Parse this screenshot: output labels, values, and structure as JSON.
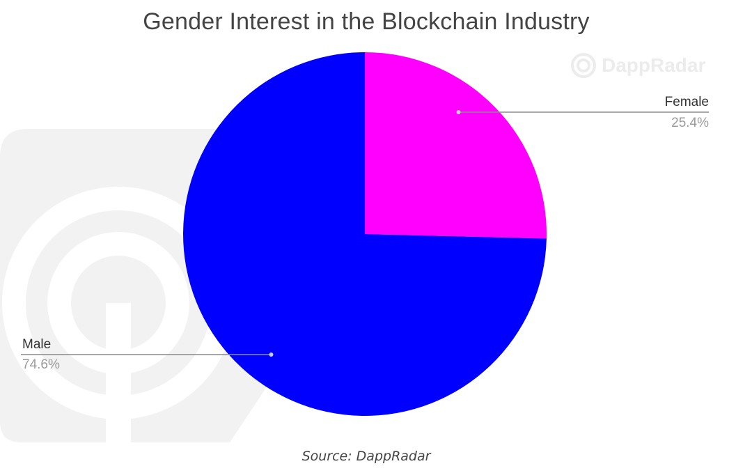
{
  "chart_data": {
    "type": "pie",
    "title": "Gender Interest in the Blockchain Industry",
    "slices": [
      {
        "label": "Female",
        "value": 25.4,
        "display": "25.4%",
        "color": "#ff00ff"
      },
      {
        "label": "Male",
        "value": 74.6,
        "display": "74.6%",
        "color": "#0000ff"
      }
    ],
    "start_angle_deg": 0,
    "direction": "clockwise",
    "legend": "none"
  },
  "watermark": {
    "text": "DappRadar"
  },
  "source": {
    "text": "Source: DappRadar"
  }
}
